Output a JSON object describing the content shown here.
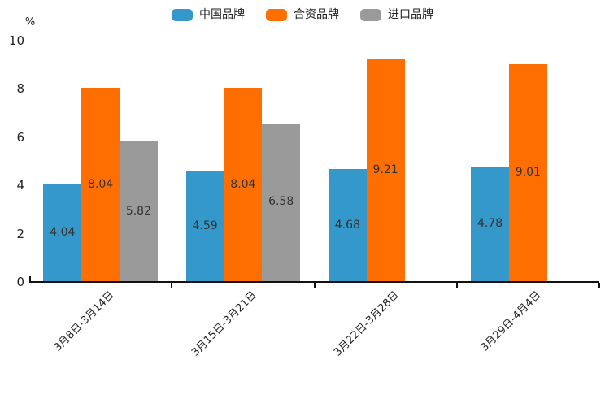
{
  "chart_data": {
    "type": "bar",
    "title": "",
    "unit_label": "%",
    "categories": [
      "3月8日-3月14日",
      "3月15日-3月21日",
      "3月22日-3月28日",
      "3月29日-4月4日"
    ],
    "series": [
      {
        "name": "中国品牌",
        "color": "#3498cb",
        "values": [
          4.04,
          4.59,
          4.68,
          4.78
        ]
      },
      {
        "name": "合资品牌",
        "color": "#ff6e00",
        "values": [
          8.04,
          8.04,
          9.21,
          9.01
        ]
      },
      {
        "name": "进口品牌",
        "color": "#9a9a9a",
        "values": [
          5.82,
          6.58,
          null,
          null
        ]
      }
    ],
    "xlabel": "",
    "ylabel": "%",
    "ylim": [
      0,
      10
    ],
    "yticks": [
      0,
      2,
      4,
      6,
      8,
      10
    ],
    "legend_position": "top",
    "value_label_decimals": 2,
    "grid": false,
    "colors": {
      "axis": "#111111",
      "tick_text": "#222222",
      "value_text": "#333333",
      "background": "#ffffff"
    }
  }
}
